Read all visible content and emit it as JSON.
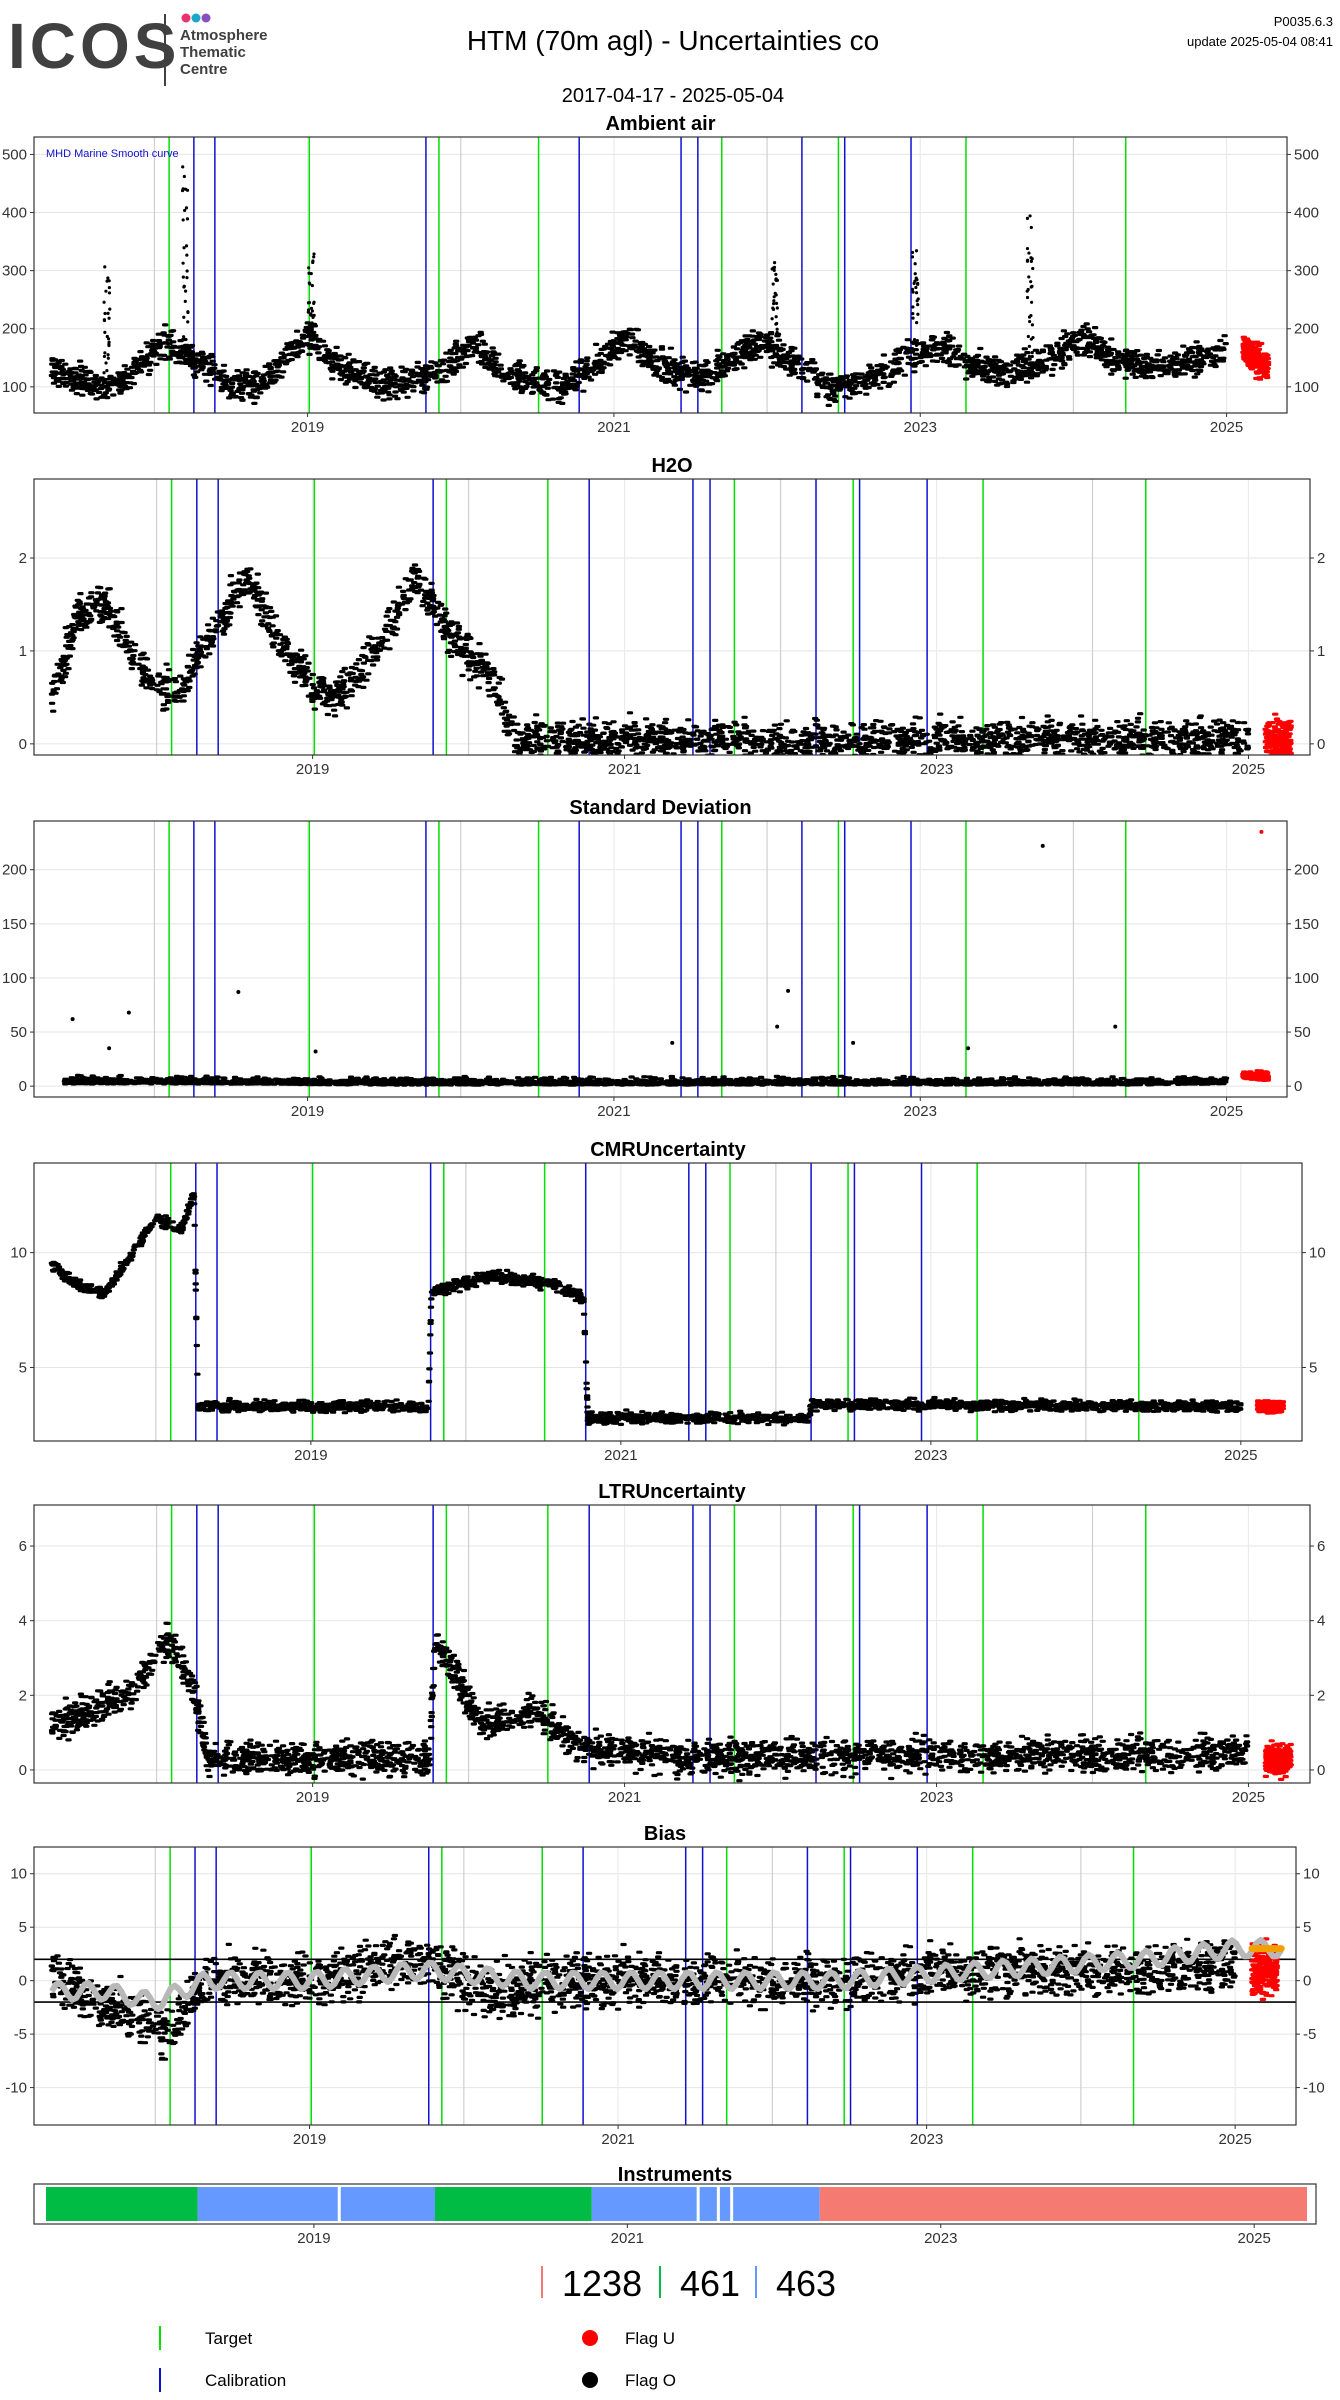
{
  "header": {
    "logo_text": "ICOS",
    "logo_sub": [
      "Atmosphere",
      "Thematic",
      "Centre"
    ],
    "logo_dot_colors": [
      "#e8336e",
      "#1aa6c8",
      "#8a4fbf"
    ],
    "title": "HTM  (70m agl) - Uncertainties co",
    "date_range": "2017-04-17 - 2025-05-04",
    "code": "P0035.6.3",
    "update": "update  2025-05-04 08:41"
  },
  "colors": {
    "target": "#00e000",
    "calibration": "#1010d0",
    "flag_u": "#ff0000",
    "flag_o": "#000000",
    "bias_smooth": "#b8b8b8",
    "bias_flag_u": "#f0a000",
    "instrument_green": "#00bb44",
    "instrument_blue": "#6699ff",
    "instrument_red": "#f57a72"
  },
  "events": {
    "target": [
      "2018-02-05",
      "2019-01-05",
      "2019-11-10",
      "2020-07-05",
      "2021-09-15",
      "2022-06-20",
      "2023-04-20",
      "2024-05-05"
    ],
    "calibration": [
      "2018-04-05",
      "2018-05-25",
      "2019-10-10",
      "2020-10-10",
      "2021-06-10",
      "2021-07-20",
      "2022-03-25",
      "2022-07-05",
      "2022-12-10"
    ]
  },
  "chart_data": [
    {
      "type": "scatter",
      "title": "Ambient air",
      "annotation": "MHD Marine Smooth curve",
      "x_ticks": [
        "2019",
        "2021",
        "2023",
        "2025"
      ],
      "y_ticks": [
        100,
        200,
        300,
        400,
        500
      ],
      "ylim": [
        55,
        530
      ],
      "grid": true,
      "series": [
        {
          "name": "Flag O",
          "points": [
            [
              "2017-05-01",
              130
            ],
            [
              "2017-07-01",
              115
            ],
            [
              "2017-09-01",
              95
            ],
            [
              "2017-11-01",
              115
            ],
            [
              "2018-01-01",
              160
            ],
            [
              "2018-02-01",
              180
            ],
            [
              "2018-03-01",
              160
            ],
            [
              "2018-05-01",
              140
            ],
            [
              "2018-07-01",
              100
            ],
            [
              "2018-09-01",
              100
            ],
            [
              "2018-11-01",
              140
            ],
            [
              "2019-01-01",
              190
            ],
            [
              "2019-03-01",
              145
            ],
            [
              "2019-05-01",
              115
            ],
            [
              "2019-07-01",
              105
            ],
            [
              "2019-09-01",
              110
            ],
            [
              "2019-12-01",
              130
            ],
            [
              "2020-02-01",
              175
            ],
            [
              "2020-04-01",
              130
            ],
            [
              "2020-07-01",
              105
            ],
            [
              "2020-09-01",
              100
            ],
            [
              "2020-12-01",
              145
            ],
            [
              "2021-02-01",
              185
            ],
            [
              "2021-04-01",
              140
            ],
            [
              "2021-06-01",
              130
            ],
            [
              "2021-08-01",
              115
            ],
            [
              "2021-11-01",
              160
            ],
            [
              "2022-01-01",
              175
            ],
            [
              "2022-03-01",
              140
            ],
            [
              "2022-06-01",
              100
            ],
            [
              "2022-09-01",
              110
            ],
            [
              "2022-12-01",
              150
            ],
            [
              "2023-03-01",
              170
            ],
            [
              "2023-05-01",
              140
            ],
            [
              "2023-08-01",
              125
            ],
            [
              "2023-11-01",
              150
            ],
            [
              "2024-02-01",
              185
            ],
            [
              "2024-04-01",
              150
            ],
            [
              "2024-07-01",
              135
            ],
            [
              "2024-10-01",
              140
            ],
            [
              "2025-01-01",
              165
            ]
          ]
        },
        {
          "name": "Flag U",
          "points": [
            [
              "2025-02-10",
              165
            ],
            [
              "2025-03-10",
              150
            ],
            [
              "2025-04-10",
              130
            ]
          ]
        }
      ],
      "spikes": [
        [
          "2018-03-15",
          480
        ],
        [
          "2019-01-10",
          340
        ],
        [
          "2022-01-20",
          330
        ],
        [
          "2023-09-20",
          400
        ],
        [
          "2017-09-10",
          310
        ],
        [
          "2022-12-20",
          335
        ]
      ]
    },
    {
      "type": "scatter",
      "title": "H2O",
      "x_ticks": [
        "2019",
        "2021",
        "2023",
        "2025"
      ],
      "y_ticks": [
        0,
        1,
        2
      ],
      "ylim": [
        -0.12,
        2.85
      ],
      "grid": true,
      "series": [
        {
          "name": "Flag O",
          "points": [
            [
              "2017-05-01",
              0.5
            ],
            [
              "2017-07-01",
              1.4
            ],
            [
              "2017-09-01",
              1.5
            ],
            [
              "2017-11-01",
              1.0
            ],
            [
              "2018-01-01",
              0.6
            ],
            [
              "2018-03-01",
              0.6
            ],
            [
              "2018-05-01",
              1.1
            ],
            [
              "2018-08-01",
              1.8
            ],
            [
              "2018-10-01",
              1.2
            ],
            [
              "2019-01-01",
              0.6
            ],
            [
              "2019-03-01",
              0.5
            ],
            [
              "2019-06-01",
              1.0
            ],
            [
              "2019-09-01",
              1.8
            ],
            [
              "2019-12-01",
              1.1
            ],
            [
              "2020-03-01",
              0.7
            ],
            [
              "2020-04-20",
              0.04
            ],
            [
              "2021-06-01",
              0.03
            ],
            [
              "2022-06-01",
              0.03
            ],
            [
              "2023-06-01",
              0.05
            ],
            [
              "2024-06-01",
              0.05
            ],
            [
              "2025-01-01",
              0.05
            ]
          ]
        },
        {
          "name": "Flag U",
          "points": [
            [
              "2025-02-10",
              0.04
            ],
            [
              "2025-04-10",
              0.04
            ]
          ]
        }
      ]
    },
    {
      "type": "scatter",
      "title": "Standard Deviation",
      "x_ticks": [
        "2019",
        "2021",
        "2023",
        "2025"
      ],
      "y_ticks": [
        0,
        50,
        100,
        150,
        200
      ],
      "ylim": [
        -10,
        245
      ],
      "grid": true,
      "series": [
        {
          "name": "Flag O",
          "points": [
            [
              "2017-06-01",
              5
            ],
            [
              "2018-06-01",
              5
            ],
            [
              "2019-06-01",
              4
            ],
            [
              "2020-06-01",
              4
            ],
            [
              "2021-06-01",
              4
            ],
            [
              "2022-06-01",
              4
            ],
            [
              "2023-06-01",
              4
            ],
            [
              "2024-06-01",
              4
            ],
            [
              "2025-01-01",
              5
            ]
          ]
        },
        {
          "name": "Flag U",
          "points": [
            [
              "2025-02-10",
              10
            ],
            [
              "2025-04-10",
              8
            ]
          ]
        }
      ],
      "outliers": [
        [
          "2017-06-20",
          62
        ],
        [
          "2017-11-01",
          68
        ],
        [
          "2018-07-20",
          87
        ],
        [
          "2017-09-15",
          35
        ],
        [
          "2019-01-20",
          32
        ],
        [
          "2021-05-20",
          40
        ],
        [
          "2022-02-20",
          88
        ],
        [
          "2022-01-25",
          55
        ],
        [
          "2022-07-25",
          40
        ],
        [
          "2023-04-25",
          35
        ],
        [
          "2024-04-10",
          55
        ],
        [
          "2023-10-20",
          222
        ],
        [
          "2025-03-25",
          235
        ]
      ]
    },
    {
      "type": "scatter",
      "title": "CMRUncertainty",
      "x_ticks": [
        "2019",
        "2021",
        "2023",
        "2025"
      ],
      "y_ticks": [
        5,
        10
      ],
      "ylim": [
        1.8,
        13.9
      ],
      "grid": true,
      "series": [
        {
          "name": "Flag O",
          "points": [
            [
              "2017-05-01",
              9.5
            ],
            [
              "2017-07-01",
              8.6
            ],
            [
              "2017-09-01",
              8.2
            ],
            [
              "2017-11-01",
              9.8
            ],
            [
              "2018-01-01",
              11.5
            ],
            [
              "2018-03-01",
              11.0
            ],
            [
              "2018-04-01",
              12.5
            ],
            [
              "2018-04-10",
              3.3
            ],
            [
              "2019-10-05",
              3.3
            ],
            [
              "2019-10-12",
              8.3
            ],
            [
              "2020-03-01",
              9.0
            ],
            [
              "2020-08-01",
              8.6
            ],
            [
              "2020-10-05",
              8.0
            ],
            [
              "2020-10-15",
              2.8
            ],
            [
              "2022-03-20",
              2.8
            ],
            [
              "2022-03-28",
              3.4
            ],
            [
              "2025-01-01",
              3.3
            ]
          ]
        },
        {
          "name": "Flag U",
          "points": [
            [
              "2025-02-10",
              3.3
            ],
            [
              "2025-04-10",
              3.3
            ]
          ]
        }
      ]
    },
    {
      "type": "scatter",
      "title": "LTRUncertainty",
      "x_ticks": [
        "2019",
        "2021",
        "2023",
        "2025"
      ],
      "y_ticks": [
        0,
        2,
        4,
        6
      ],
      "ylim": [
        -0.35,
        7.1
      ],
      "grid": true,
      "series": [
        {
          "name": "Flag O",
          "points": [
            [
              "2017-05-01",
              1.2
            ],
            [
              "2017-08-01",
              1.6
            ],
            [
              "2017-11-01",
              2.0
            ],
            [
              "2018-02-01",
              3.5
            ],
            [
              "2018-04-01",
              2.0
            ],
            [
              "2018-05-01",
              0.3
            ],
            [
              "2019-10-01",
              0.3
            ],
            [
              "2019-10-15",
              3.5
            ],
            [
              "2020-02-01",
              1.2
            ],
            [
              "2020-06-01",
              1.6
            ],
            [
              "2020-10-01",
              0.6
            ],
            [
              "2021-06-01",
              0.3
            ],
            [
              "2022-06-01",
              0.4
            ],
            [
              "2023-06-01",
              0.4
            ],
            [
              "2024-06-01",
              0.4
            ],
            [
              "2025-01-01",
              0.5
            ]
          ]
        },
        {
          "name": "Flag U",
          "points": [
            [
              "2025-02-10",
              0.3
            ],
            [
              "2025-04-10",
              0.3
            ]
          ]
        }
      ]
    },
    {
      "type": "scatter",
      "title": "Bias",
      "x_ticks": [
        "2019",
        "2021",
        "2023",
        "2025"
      ],
      "y_ticks": [
        -10,
        -5,
        0,
        5,
        10
      ],
      "ylim": [
        -13.5,
        12.5
      ],
      "hlines": [
        2,
        -2
      ],
      "grid": true,
      "series": [
        {
          "name": "Flag O",
          "points": [
            [
              "2017-05-01",
              1
            ],
            [
              "2017-08-01",
              -2
            ],
            [
              "2017-11-01",
              -3
            ],
            [
              "2018-02-01",
              -5
            ],
            [
              "2018-05-01",
              0
            ],
            [
              "2019-01-01",
              0
            ],
            [
              "2019-10-01",
              2
            ],
            [
              "2020-03-01",
              -1
            ],
            [
              "2020-09-01",
              0
            ],
            [
              "2021-06-01",
              0
            ],
            [
              "2022-06-01",
              0
            ],
            [
              "2023-06-01",
              1
            ],
            [
              "2024-06-01",
              1
            ],
            [
              "2025-01-01",
              1.5
            ]
          ]
        },
        {
          "name": "Flag U",
          "points": [
            [
              "2025-02-10",
              1
            ],
            [
              "2025-04-10",
              1
            ]
          ]
        }
      ],
      "smooth": [
        [
          "2017-05-01",
          -1
        ],
        [
          "2017-09-01",
          -1
        ],
        [
          "2018-01-01",
          -2
        ],
        [
          "2018-05-01",
          0
        ],
        [
          "2019-01-01",
          0
        ],
        [
          "2019-10-01",
          1
        ],
        [
          "2020-06-01",
          0
        ],
        [
          "2021-06-01",
          0
        ],
        [
          "2022-06-01",
          0
        ],
        [
          "2023-06-01",
          1
        ],
        [
          "2024-06-01",
          2
        ],
        [
          "2025-01-01",
          3
        ],
        [
          "2025-04-20",
          3
        ]
      ]
    }
  ],
  "instruments": {
    "title": "Instruments",
    "x_ticks": [
      "2019",
      "2021",
      "2023",
      "2025"
    ],
    "segments": [
      {
        "start": "2017-04-17",
        "end": "2018-04-05",
        "color": "green"
      },
      {
        "start": "2018-04-05",
        "end": "2019-10-10",
        "color": "blue"
      },
      {
        "start": "2019-10-10",
        "end": "2020-10-10",
        "color": "green"
      },
      {
        "start": "2020-10-10",
        "end": "2022-03-25",
        "color": "blue"
      },
      {
        "start": "2022-03-25",
        "end": "2025-05-04",
        "color": "red"
      }
    ],
    "counts": [
      "1238",
      "461",
      "463"
    ]
  },
  "legend": [
    {
      "label": "Target",
      "symbol": "line",
      "color": "target"
    },
    {
      "label": "Flag U",
      "symbol": "dot",
      "color": "flag_u"
    },
    {
      "label": "Calibration",
      "symbol": "line",
      "color": "calibration"
    },
    {
      "label": "Flag O",
      "symbol": "dot",
      "color": "flag_o"
    }
  ]
}
